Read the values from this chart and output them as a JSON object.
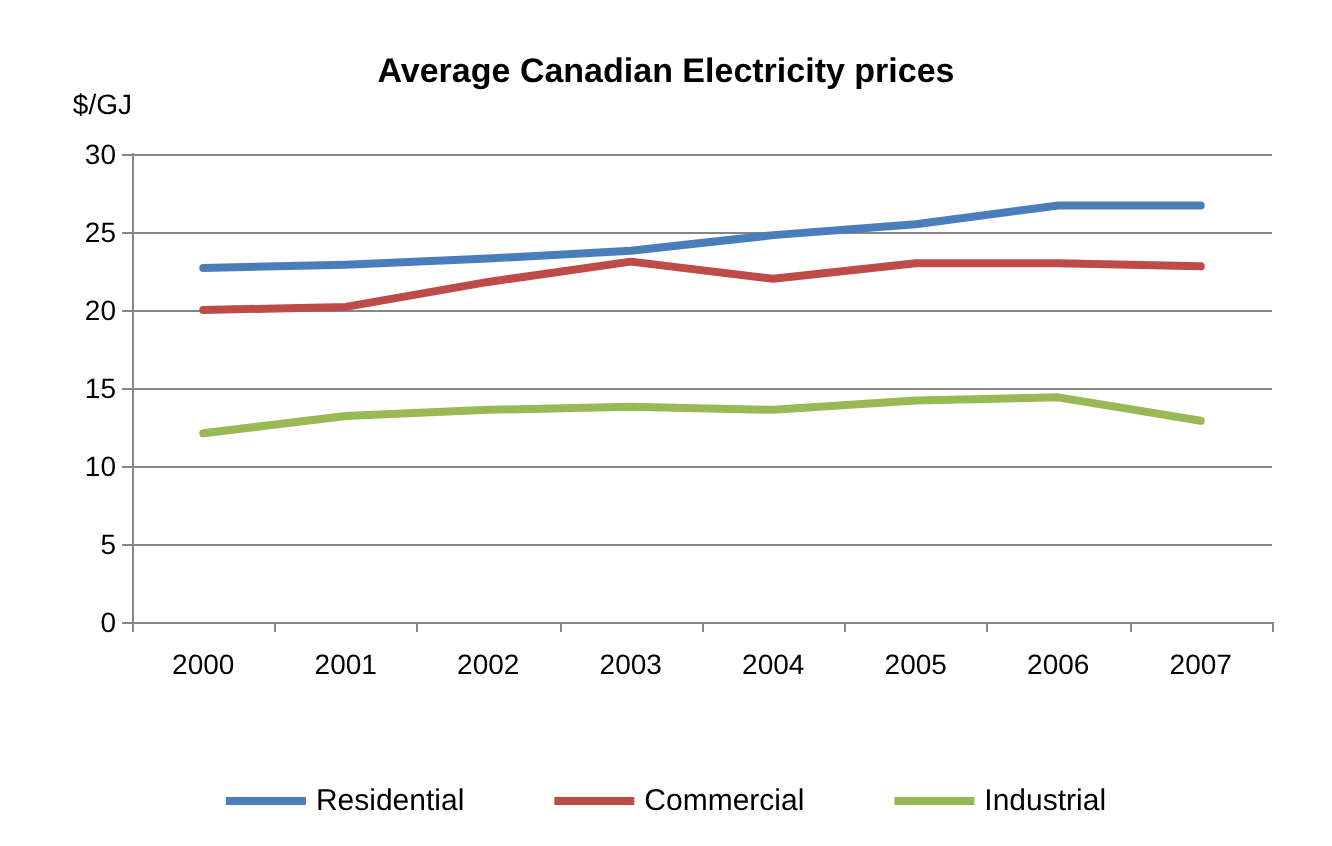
{
  "chart_data": {
    "type": "line",
    "title": "Average Canadian Electricity prices",
    "ylabel": "$/GJ",
    "categories": [
      "2000",
      "2001",
      "2002",
      "2003",
      "2004",
      "2005",
      "2006",
      "2007"
    ],
    "series": [
      {
        "name": "Residential",
        "color": "#4a7ebb",
        "values": [
          22.7,
          22.9,
          23.3,
          23.8,
          24.8,
          25.5,
          26.7,
          26.7
        ]
      },
      {
        "name": "Commercial",
        "color": "#be4b48",
        "values": [
          20.0,
          20.2,
          21.8,
          23.1,
          22.0,
          23.0,
          23.0,
          22.8
        ]
      },
      {
        "name": "Industrial",
        "color": "#98b954",
        "values": [
          12.1,
          13.2,
          13.6,
          13.8,
          13.6,
          14.2,
          14.4,
          12.9
        ]
      }
    ],
    "ylim": [
      0,
      30
    ],
    "yticks": [
      0,
      5,
      10,
      15,
      20,
      25,
      30
    ],
    "grid": "y",
    "legend": "bottom",
    "marker": "none",
    "line_style": "solid"
  }
}
